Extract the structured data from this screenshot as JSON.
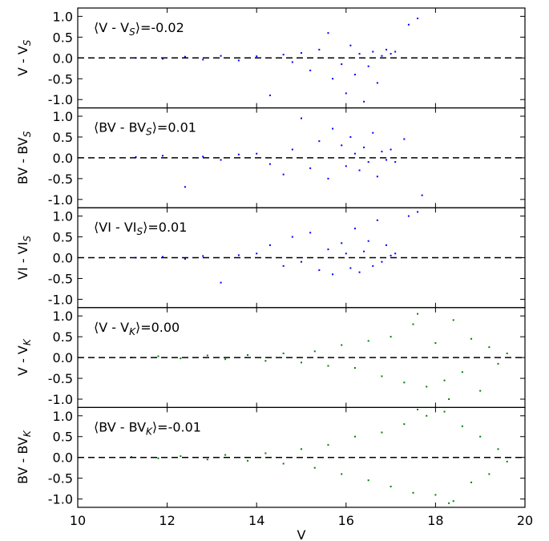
{
  "chart_data": [
    {
      "type": "scatter",
      "ylabel": {
        "main": "V - V",
        "sub": "S"
      },
      "annotation": {
        "before": "⟨V - V",
        "sub": "S",
        "after": "⟩=-0.02"
      },
      "hline": 0,
      "xlim": [
        10,
        20
      ],
      "xticks": [
        10,
        12,
        14,
        16,
        18,
        20
      ],
      "ylim": [
        -1.2,
        1.2
      ],
      "yticks": [
        {
          "value": -1,
          "label": "-1.0"
        },
        {
          "value": -0.5,
          "label": "-0.5"
        },
        {
          "value": 0,
          "label": "0.0"
        },
        {
          "value": 0.5,
          "label": "0.5"
        },
        {
          "value": 1,
          "label": "1.0"
        }
      ],
      "series": [
        {
          "color": "#0000ff",
          "x": [
            11.3,
            11.9,
            12.4,
            12.8,
            13.2,
            13.6,
            14.0,
            14.3,
            14.6,
            14.8,
            15.0,
            15.2,
            15.4,
            15.6,
            15.7,
            15.9,
            16.0,
            16.1,
            16.2,
            16.3,
            16.4,
            16.5,
            16.6,
            16.7,
            16.8,
            16.9,
            17.0,
            17.1,
            17.4,
            17.6
          ],
          "values": [
            0.0,
            -0.02,
            0.03,
            -0.04,
            0.05,
            -0.06,
            0.04,
            -0.9,
            0.08,
            -0.1,
            0.12,
            -0.3,
            0.2,
            0.6,
            -0.5,
            -0.15,
            -0.85,
            0.3,
            -0.4,
            0.1,
            -1.05,
            -0.2,
            0.15,
            -0.6,
            0.05,
            0.2,
            0.1,
            0.15,
            0.8,
            0.95
          ]
        }
      ]
    },
    {
      "type": "scatter",
      "ylabel": {
        "main": "BV - BV",
        "sub": "S"
      },
      "annotation": {
        "before": "⟨BV - BV",
        "sub": "S",
        "after": "⟩=0.01"
      },
      "hline": 0,
      "xlim": [
        10,
        20
      ],
      "xticks": [
        10,
        12,
        14,
        16,
        18,
        20
      ],
      "ylim": [
        -1.2,
        1.2
      ],
      "yticks": [
        {
          "value": -1,
          "label": "-1.0"
        },
        {
          "value": -0.5,
          "label": "-0.5"
        },
        {
          "value": 0,
          "label": "0.0"
        },
        {
          "value": 0.5,
          "label": "0.5"
        },
        {
          "value": 1,
          "label": "1.0"
        }
      ],
      "series": [
        {
          "color": "#0000ff",
          "x": [
            11.3,
            11.9,
            12.4,
            12.8,
            13.2,
            13.6,
            14.0,
            14.3,
            14.6,
            14.8,
            15.0,
            15.2,
            15.4,
            15.6,
            15.7,
            15.9,
            16.0,
            16.1,
            16.2,
            16.3,
            16.4,
            16.5,
            16.6,
            16.7,
            16.8,
            16.9,
            17.0,
            17.1,
            17.3,
            17.7
          ],
          "values": [
            0.02,
            0.05,
            -0.7,
            0.03,
            -0.05,
            0.08,
            0.1,
            -0.15,
            -0.4,
            0.2,
            0.95,
            -0.25,
            0.4,
            -0.5,
            0.7,
            0.3,
            -0.2,
            0.5,
            0.1,
            -0.3,
            0.25,
            -0.1,
            0.6,
            -0.45,
            0.15,
            -0.05,
            0.2,
            -0.1,
            0.45,
            -0.9
          ]
        }
      ]
    },
    {
      "type": "scatter",
      "ylabel": {
        "main": "VI - VI",
        "sub": "S"
      },
      "annotation": {
        "before": "⟨VI - VI",
        "sub": "S",
        "after": "⟩=0.01"
      },
      "hline": 0,
      "xlim": [
        10,
        20
      ],
      "xticks": [
        10,
        12,
        14,
        16,
        18,
        20
      ],
      "ylim": [
        -1.2,
        1.2
      ],
      "yticks": [
        {
          "value": -1,
          "label": "-1.0"
        },
        {
          "value": -0.5,
          "label": "-0.5"
        },
        {
          "value": 0,
          "label": "0.0"
        },
        {
          "value": 0.5,
          "label": "0.5"
        },
        {
          "value": 1,
          "label": "1.0"
        }
      ],
      "series": [
        {
          "color": "#0000ff",
          "x": [
            11.3,
            11.9,
            12.4,
            12.8,
            13.2,
            13.6,
            14.0,
            14.3,
            14.6,
            14.8,
            15.0,
            15.2,
            15.4,
            15.6,
            15.7,
            15.9,
            16.0,
            16.1,
            16.2,
            16.3,
            16.4,
            16.5,
            16.6,
            16.7,
            16.8,
            16.9,
            17.0,
            17.1,
            17.4,
            17.6
          ],
          "values": [
            0.0,
            0.02,
            -0.03,
            0.04,
            -0.6,
            0.06,
            0.1,
            0.3,
            -0.2,
            0.5,
            -0.1,
            0.6,
            -0.3,
            0.2,
            -0.4,
            0.35,
            0.1,
            -0.25,
            0.7,
            -0.35,
            0.15,
            0.4,
            -0.2,
            0.9,
            -0.1,
            0.3,
            0.05,
            0.1,
            1.0,
            1.1
          ]
        }
      ]
    },
    {
      "type": "scatter",
      "ylabel": {
        "main": "V - V",
        "sub": "K"
      },
      "annotation": {
        "before": "⟨V - V",
        "sub": "K",
        "after": "⟩=0.00"
      },
      "hline": 0,
      "xlim": [
        10,
        20
      ],
      "xticks": [
        10,
        12,
        14,
        16,
        18,
        20
      ],
      "ylim": [
        -1.2,
        1.2
      ],
      "yticks": [
        {
          "value": -1,
          "label": "-1.0"
        },
        {
          "value": -0.5,
          "label": "-0.5"
        },
        {
          "value": 0,
          "label": "0.0"
        },
        {
          "value": 0.5,
          "label": "0.5"
        },
        {
          "value": 1,
          "label": "1.0"
        }
      ],
      "series": [
        {
          "color": "#007f00",
          "x": [
            11.2,
            11.8,
            12.3,
            12.9,
            13.3,
            13.8,
            14.2,
            14.6,
            15.0,
            15.3,
            15.6,
            15.9,
            16.2,
            16.5,
            16.8,
            17.0,
            17.3,
            17.5,
            17.8,
            18.0,
            18.2,
            18.4,
            18.6,
            18.8,
            19.0,
            19.2,
            19.4,
            19.6,
            17.6,
            18.3
          ],
          "values": [
            0.0,
            0.03,
            -0.02,
            0.05,
            -0.04,
            0.06,
            -0.08,
            0.1,
            -0.12,
            0.15,
            -0.2,
            0.3,
            -0.25,
            0.4,
            -0.45,
            0.5,
            -0.6,
            0.8,
            -0.7,
            0.35,
            -0.55,
            0.9,
            -0.35,
            0.45,
            -0.8,
            0.25,
            -0.15,
            0.1,
            1.05,
            -1.0
          ]
        }
      ]
    },
    {
      "type": "scatter",
      "ylabel": {
        "main": "BV - BV",
        "sub": "K"
      },
      "annotation": {
        "before": "⟨BV - BV",
        "sub": "K",
        "after": "⟩=-0.01"
      },
      "hline": 0,
      "xlim": [
        10,
        20
      ],
      "xticks": [
        10,
        12,
        14,
        16,
        18,
        20
      ],
      "xlabel": "V",
      "ylim": [
        -1.2,
        1.2
      ],
      "yticks": [
        {
          "value": -1,
          "label": "-1.0"
        },
        {
          "value": -0.5,
          "label": "-0.5"
        },
        {
          "value": 0,
          "label": "0.0"
        },
        {
          "value": 0.5,
          "label": "0.5"
        },
        {
          "value": 1,
          "label": "1.0"
        }
      ],
      "series": [
        {
          "color": "#007f00",
          "x": [
            11.2,
            11.8,
            12.3,
            12.9,
            13.3,
            13.8,
            14.2,
            14.6,
            15.0,
            15.3,
            15.6,
            15.9,
            16.2,
            16.5,
            16.8,
            17.0,
            17.3,
            17.5,
            17.8,
            18.0,
            18.2,
            18.4,
            18.6,
            18.8,
            19.0,
            19.2,
            19.4,
            19.6,
            17.6,
            18.3
          ],
          "values": [
            0.01,
            -0.02,
            0.03,
            -0.05,
            0.06,
            -0.08,
            0.1,
            -0.15,
            0.2,
            -0.25,
            0.3,
            -0.4,
            0.5,
            -0.55,
            0.6,
            -0.7,
            0.8,
            -0.85,
            1.0,
            -0.9,
            1.1,
            -1.05,
            0.75,
            -0.6,
            0.5,
            -0.4,
            0.2,
            -0.1,
            1.15,
            -1.1
          ]
        }
      ]
    }
  ]
}
